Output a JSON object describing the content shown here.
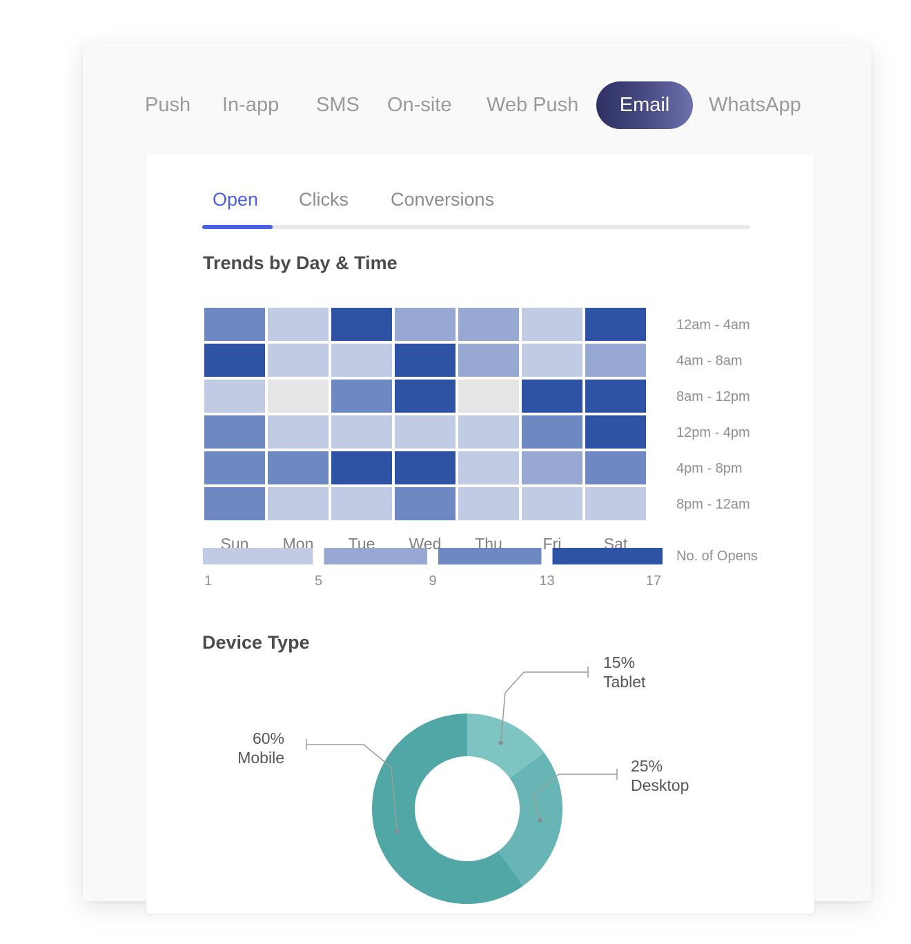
{
  "channel_tabs": [
    {
      "label": "Push",
      "active": false
    },
    {
      "label": "In-app",
      "active": false
    },
    {
      "label": "SMS",
      "active": false
    },
    {
      "label": "On-site",
      "active": false
    },
    {
      "label": "Web Push",
      "active": false
    },
    {
      "label": "Email",
      "active": true
    },
    {
      "label": "WhatsApp",
      "active": false
    }
  ],
  "metric_tabs": [
    {
      "label": "Open",
      "active": true
    },
    {
      "label": "Clicks",
      "active": false
    },
    {
      "label": "Conversions",
      "active": false
    }
  ],
  "trends_title": "Trends by Day & Time",
  "device_title": "Device Type",
  "colors": {
    "accent": "#4a5fe6",
    "level_1": "#c1cbe4",
    "level_2": "#97a9d3",
    "level_3": "#6e88c1",
    "level_4": "#2e53a5",
    "empty": "#e6e6e6",
    "mobile": "#51a6a6",
    "desktop": "#67b5b4",
    "tablet": "#7ec4c2"
  },
  "chart_data": [
    {
      "type": "heatmap",
      "title": "Trends by Day & Time",
      "x_categories": [
        "Sun",
        "Mon",
        "Tue",
        "Wed",
        "Thu",
        "Fri",
        "Sat"
      ],
      "y_categories": [
        "12am - 4am",
        "4am - 8am",
        "8am - 12pm",
        "12pm - 4pm",
        "4pm - 8pm",
        "8pm - 12am"
      ],
      "levels": [
        [
          3,
          1,
          4,
          2,
          2,
          1,
          4
        ],
        [
          4,
          1,
          1,
          4,
          2,
          1,
          2
        ],
        [
          1,
          0,
          3,
          4,
          0,
          4,
          4
        ],
        [
          3,
          1,
          1,
          1,
          1,
          3,
          4
        ],
        [
          3,
          3,
          4,
          4,
          1,
          2,
          3
        ],
        [
          3,
          1,
          1,
          3,
          1,
          1,
          1
        ]
      ],
      "legend": {
        "title": "No. of Opens",
        "ticks": [
          "1",
          "5",
          "9",
          "13",
          "17"
        ],
        "bins": [
          [
            1,
            5
          ],
          [
            5,
            9
          ],
          [
            9,
            13
          ],
          [
            13,
            17
          ]
        ]
      }
    },
    {
      "type": "pie",
      "title": "Device Type",
      "series": [
        {
          "name": "Mobile",
          "value": 60,
          "label": "60%"
        },
        {
          "name": "Tablet",
          "value": 15,
          "label": "15%"
        },
        {
          "name": "Desktop",
          "value": 25,
          "label": "25%"
        }
      ]
    }
  ]
}
